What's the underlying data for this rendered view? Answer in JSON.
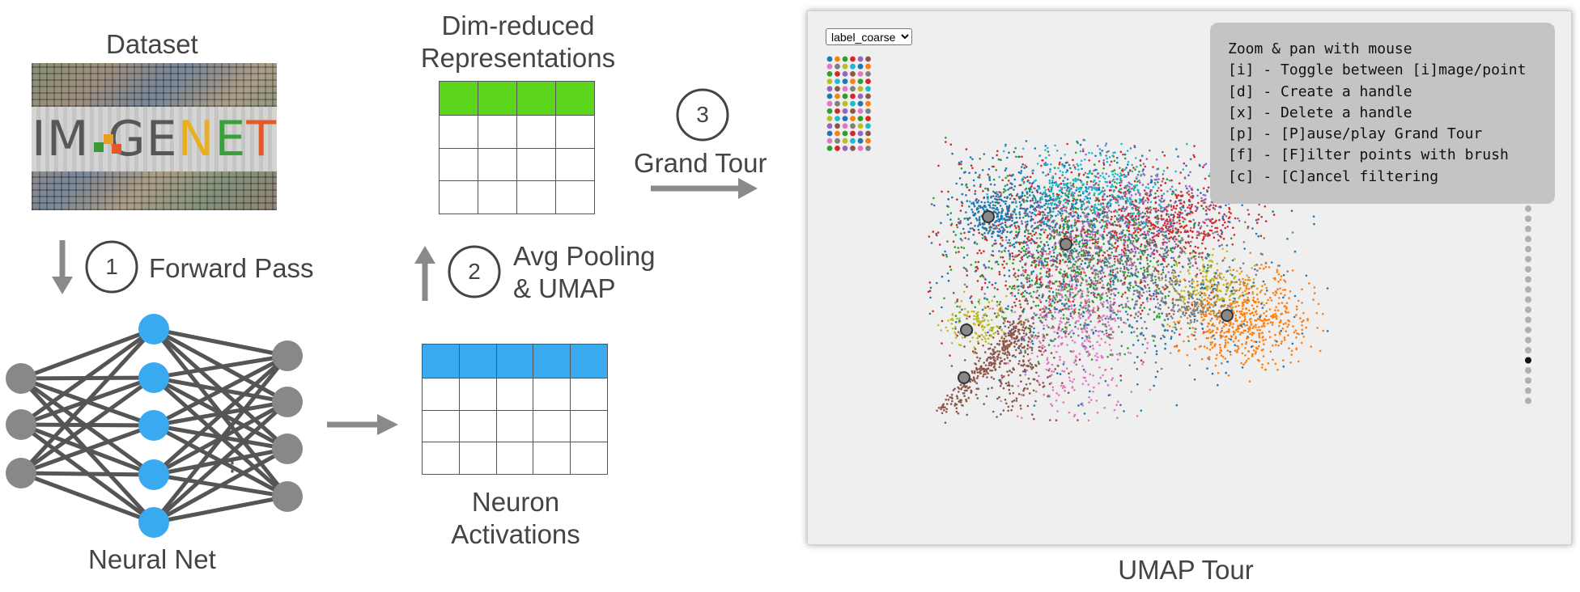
{
  "dataset": {
    "label": "Dataset"
  },
  "imagenet_logo": {
    "text_left": "IM",
    "text_right": "GENET"
  },
  "steps": [
    {
      "number": "1",
      "label": "Forward Pass"
    },
    {
      "number": "2",
      "label_line1": "Avg Pooling",
      "label_line2": "& UMAP"
    },
    {
      "number": "3",
      "label": "Grand Tour"
    }
  ],
  "neural_net": {
    "label": "Neural Net",
    "ellipsis": "⋮"
  },
  "dim_reduced": {
    "line1": "Dim-reduced",
    "line2": "Representations"
  },
  "neuron_activations": {
    "line1": "Neuron",
    "line2": "Activations"
  },
  "umap_tool": {
    "caption": "UMAP Tour",
    "selector": {
      "selected": "label_coarse"
    },
    "help": [
      "Zoom & pan with mouse",
      "[i] - Toggle between [i]mage/point",
      "[d] - Create a handle",
      "[x] - Delete a handle",
      "[p] - [P]ause/play Grand Tour",
      "[f] - [F]ilter points with brush",
      "[c] - [C]ancel filtering"
    ],
    "legend_colors": [
      "#1f77b4",
      "#ff7f0e",
      "#2ca02c",
      "#d62728",
      "#9467bd",
      "#8c564b",
      "#e377c2",
      "#7f7f7f",
      "#bcbd22",
      "#17becf"
    ]
  },
  "colors": {
    "text": "#444444",
    "arrow": "#8a8a8a",
    "node_gray": "#888888",
    "node_blue": "#3aaaf0",
    "header_green": "#5cd61c",
    "header_blue": "#3aaaf0",
    "edge": "#555555"
  }
}
